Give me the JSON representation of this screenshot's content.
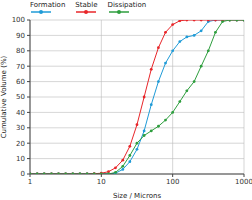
{
  "chart_data": {
    "type": "line",
    "x_label": "Size / Microns",
    "y_label": "Cumulative Volume (%)",
    "log": "x",
    "grid": true,
    "legend": "top-left",
    "xlim": [
      1,
      1000
    ],
    "xticks": [
      1,
      10,
      100,
      1000
    ],
    "ylim": [
      0,
      100
    ],
    "yticks": [
      0,
      10,
      20,
      30,
      40,
      50,
      60,
      70,
      80,
      90,
      100
    ],
    "x": [
      1,
      1.26,
      1.58,
      2,
      2.51,
      3.16,
      3.98,
      5.01,
      6.31,
      7.94,
      10,
      12.6,
      15.8,
      20,
      25.1,
      31.6,
      39.8,
      50.1,
      63.1,
      79.4,
      100,
      126,
      158,
      200,
      251,
      316,
      398,
      501,
      631,
      794,
      1000
    ],
    "series": [
      {
        "name": "Formation",
        "color": "#1f9bd7",
        "marker": "circle",
        "values": [
          0,
          0,
          0,
          0,
          0,
          0,
          0,
          0,
          0,
          0,
          0,
          0,
          0.5,
          3,
          8,
          16,
          28,
          45,
          60,
          72,
          80,
          86,
          89,
          90,
          93,
          99,
          100,
          100,
          100,
          100,
          100
        ]
      },
      {
        "name": "Stable",
        "color": "#e8262a",
        "marker": "circle",
        "values": [
          0,
          0,
          0,
          0,
          0,
          0,
          0,
          0,
          0,
          0.2,
          0.5,
          1.5,
          4,
          9,
          18,
          32,
          50,
          68,
          82,
          92,
          97,
          99.5,
          100,
          100,
          100,
          100,
          100,
          100,
          100,
          100,
          100
        ]
      },
      {
        "name": "Dissipation",
        "color": "#2e9e3e",
        "marker": "circle",
        "values": [
          0,
          0,
          0,
          0,
          0,
          0,
          0,
          0,
          0,
          0,
          0,
          0,
          1,
          5,
          12,
          20,
          25,
          28,
          31,
          35,
          40,
          47,
          54,
          60,
          70,
          80,
          92,
          99,
          100,
          100,
          100
        ]
      }
    ]
  }
}
